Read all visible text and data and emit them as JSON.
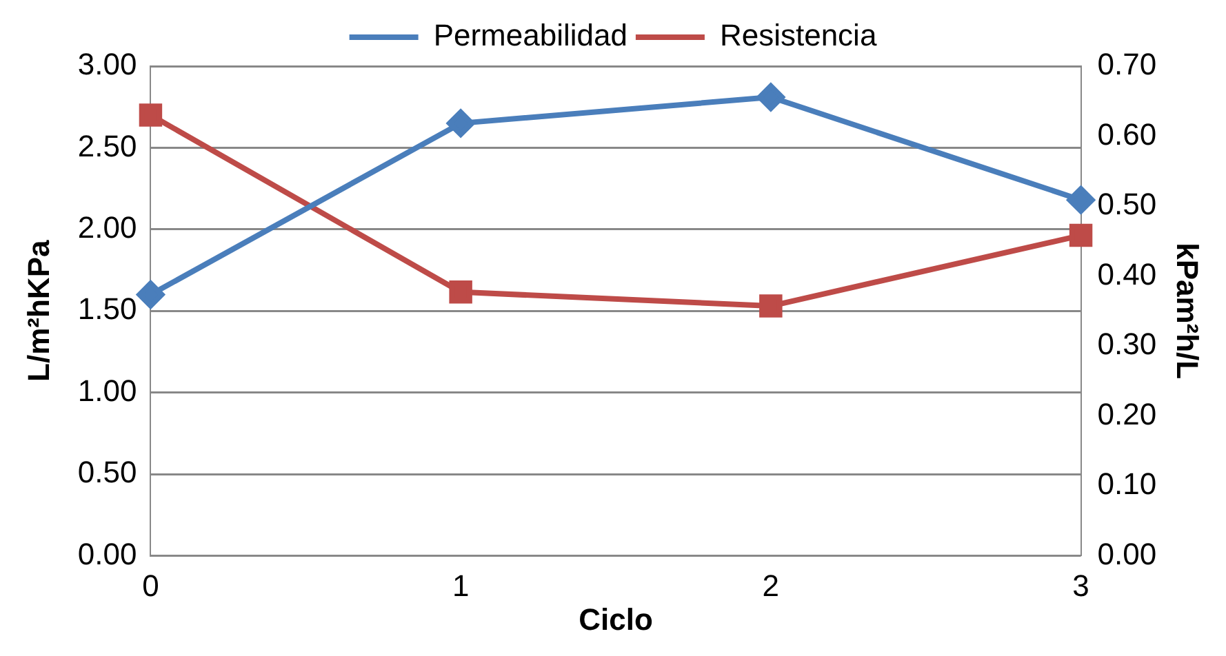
{
  "chart_data": {
    "type": "line",
    "xlabel": "Ciclo",
    "ylabel": "L/m²hKPa",
    "y2label": "kPam²h/L",
    "categories": [
      "0",
      "1",
      "2",
      "3"
    ],
    "series": [
      {
        "name": "Permeabilidad",
        "color": "#4a7ebb",
        "marker": "diamond",
        "values": [
          1.6,
          2.65,
          2.81,
          2.18
        ]
      },
      {
        "name": "Resistencia",
        "color": "#be4b48",
        "marker": "square",
        "axis": "y2",
        "values": [
          0.63,
          0.377,
          0.357,
          0.458
        ]
      }
    ],
    "ylim": [
      0,
      3
    ],
    "yticks": [
      {
        "value": 0,
        "label": "0.00"
      },
      {
        "value": 0.5,
        "label": "0.50"
      },
      {
        "value": 1,
        "label": "1.00"
      },
      {
        "value": 1.5,
        "label": "1.50"
      },
      {
        "value": 2,
        "label": "2.00"
      },
      {
        "value": 2.5,
        "label": "2.50"
      },
      {
        "value": 3,
        "label": "3.00"
      }
    ],
    "y2lim": [
      0,
      0.7
    ],
    "y2ticks": [
      {
        "value": 0,
        "label": "0.00"
      },
      {
        "value": 0.1,
        "label": "0.10"
      },
      {
        "value": 0.2,
        "label": "0.20"
      },
      {
        "value": 0.3,
        "label": "0.30"
      },
      {
        "value": 0.4,
        "label": "0.40"
      },
      {
        "value": 0.5,
        "label": "0.50"
      },
      {
        "value": 0.6,
        "label": "0.60"
      },
      {
        "value": 0.7,
        "label": "0.70"
      }
    ],
    "grid": "y",
    "legend": "top",
    "line_style": "solid"
  }
}
